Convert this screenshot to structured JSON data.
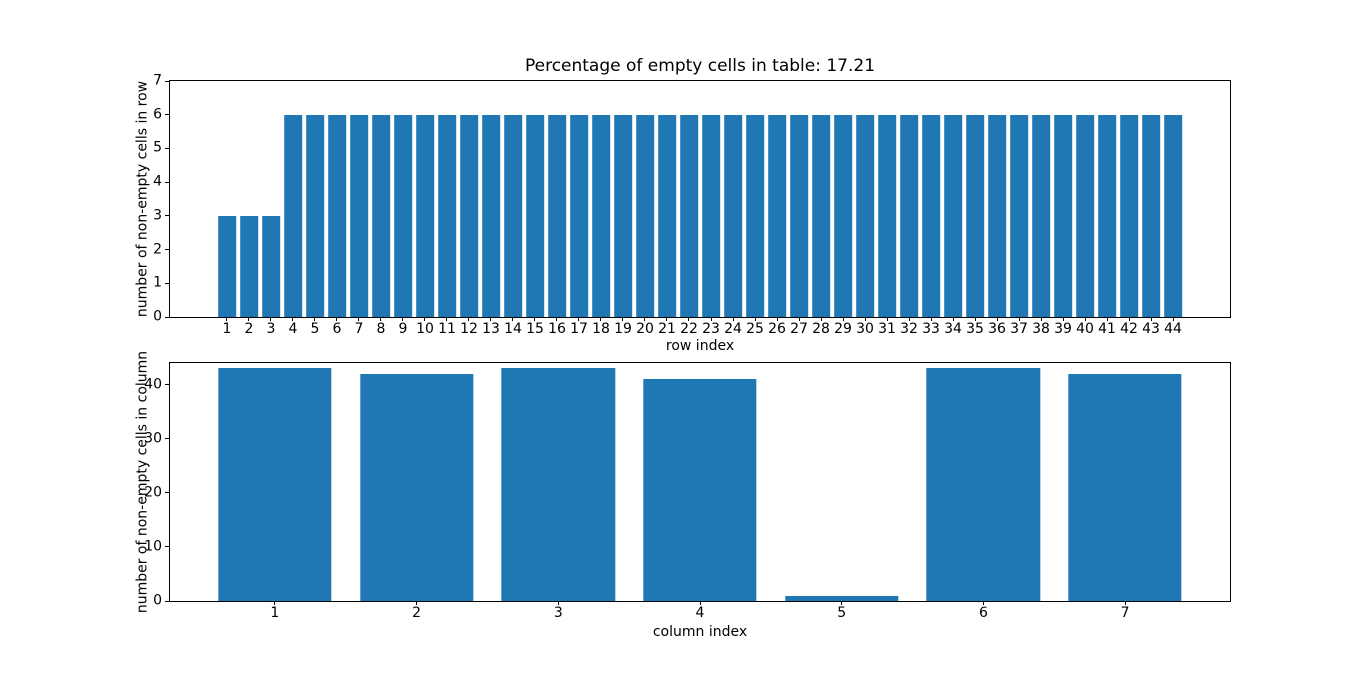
{
  "figure": {
    "background": "#ffffff",
    "text_color": "#000000"
  },
  "chart_data": [
    {
      "type": "bar",
      "title": "Percentage of empty cells in table: 17.21",
      "xlabel": "row index",
      "ylabel": "number of non-empty cells in row",
      "categories": [
        "1",
        "2",
        "3",
        "4",
        "5",
        "6",
        "7",
        "8",
        "9",
        "10",
        "11",
        "12",
        "13",
        "14",
        "15",
        "16",
        "17",
        "18",
        "19",
        "20",
        "21",
        "22",
        "23",
        "24",
        "25",
        "26",
        "27",
        "28",
        "29",
        "30",
        "31",
        "32",
        "33",
        "34",
        "35",
        "36",
        "37",
        "38",
        "39",
        "40",
        "41",
        "42",
        "43",
        "44"
      ],
      "values": [
        3,
        3,
        3,
        6,
        6,
        6,
        6,
        6,
        6,
        6,
        6,
        6,
        6,
        6,
        6,
        6,
        6,
        6,
        6,
        6,
        6,
        6,
        6,
        6,
        6,
        6,
        6,
        6,
        6,
        6,
        6,
        6,
        6,
        6,
        6,
        6,
        6,
        6,
        6,
        6,
        6,
        6,
        6,
        6
      ],
      "ylim": [
        0,
        7
      ],
      "yticks": [
        0,
        1,
        2,
        3,
        4,
        5,
        6,
        7
      ],
      "bar_color": "#1f77b4",
      "bar_width": 0.8,
      "xmargin": 0.05,
      "grid": false,
      "legend": false
    },
    {
      "type": "bar",
      "title": "",
      "xlabel": "column index",
      "ylabel": "number of non-empty cells in column",
      "categories": [
        "1",
        "2",
        "3",
        "4",
        "5",
        "6",
        "7"
      ],
      "values": [
        43,
        42,
        43,
        41,
        1,
        43,
        42
      ],
      "ylim": [
        0,
        44
      ],
      "yticks": [
        0,
        10,
        20,
        30,
        40
      ],
      "bar_color": "#1f77b4",
      "bar_width": 0.8,
      "xmargin": 0.05,
      "grid": false,
      "legend": false
    }
  ]
}
